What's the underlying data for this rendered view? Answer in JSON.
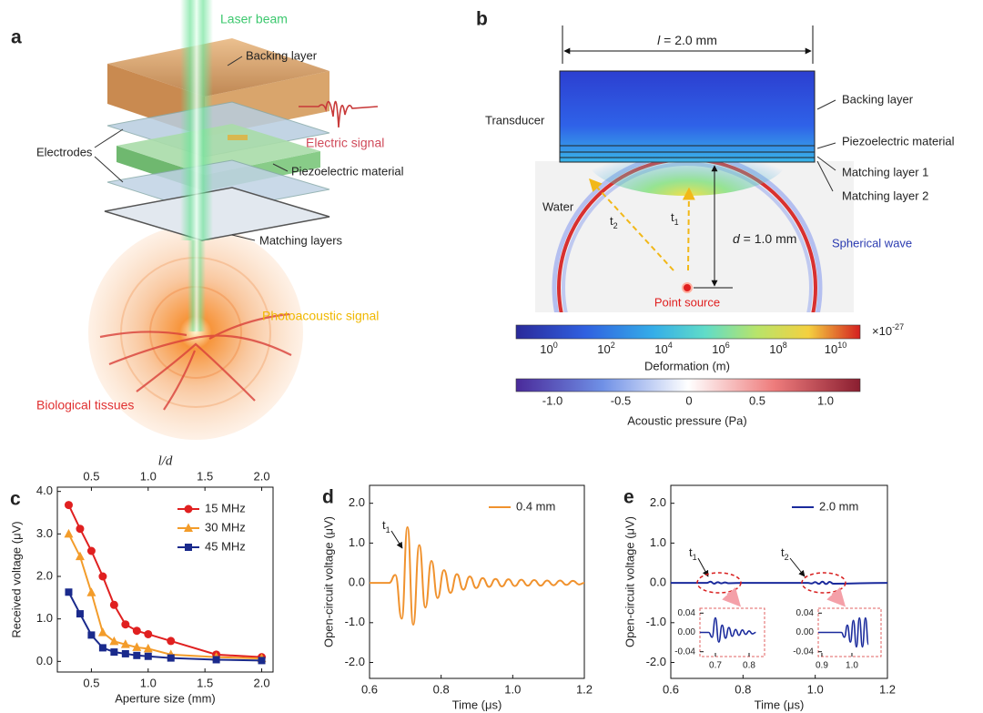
{
  "panel_a": {
    "label": "a",
    "laser": "Laser beam",
    "backing": "Backing layer",
    "electric": "Electric signal",
    "electrodes": "Electrodes",
    "piezo": "Piezoelectric material",
    "matching": "Matching layers",
    "photoacoustic": "Photoacoustic signal",
    "tissues": "Biological tissues"
  },
  "panel_b": {
    "label": "b",
    "length": {
      "symbol": "l",
      "rest": " = 2.0 mm"
    },
    "distance": {
      "symbol": "d",
      "rest": " = 1.0 mm"
    },
    "transducer": "Transducer",
    "backing": "Backing layer",
    "piezo": "Piezoelectric material",
    "matching1": "Matching layer 1",
    "matching2": "Matching layer 2",
    "water": "Water",
    "spherical": "Spherical wave",
    "point": "Point source",
    "t1": {
      "text": "t",
      "sub": "1"
    },
    "t2": {
      "text": "t",
      "sub": "2"
    },
    "deformation_bar": {
      "ticks": [
        {
          "base": "10",
          "exp": "0"
        },
        {
          "base": "10",
          "exp": "2"
        },
        {
          "base": "10",
          "exp": "4"
        },
        {
          "base": "10",
          "exp": "6"
        },
        {
          "base": "10",
          "exp": "8"
        },
        {
          "base": "10",
          "exp": "10"
        }
      ],
      "multiplier": {
        "base": "×10",
        "exp": "-27"
      },
      "label": "Deformation (m)"
    },
    "pressure_bar": {
      "ticks": [
        "-1.0",
        "-0.5",
        "0",
        "0.5",
        "1.0"
      ],
      "label": "Acoustic pressure (Pa)"
    }
  },
  "chart_data": [
    {
      "type": "line",
      "panel_label": "c",
      "x_label": "Aperture size (mm)",
      "y_label": "Received voltage (μV)",
      "x2_label": "l/d",
      "x": [
        0.3,
        0.4,
        0.5,
        0.6,
        0.7,
        0.8,
        0.9,
        1.0,
        1.2,
        1.6,
        2.0
      ],
      "series": [
        {
          "name": "15 MHz",
          "color": "#e02020",
          "marker": "circle",
          "values": [
            3.68,
            3.12,
            2.6,
            2.0,
            1.33,
            0.87,
            0.72,
            0.64,
            0.48,
            0.16,
            0.1
          ]
        },
        {
          "name": "30 MHz",
          "color": "#f39c2a",
          "marker": "triangle",
          "values": [
            3.0,
            2.47,
            1.62,
            0.68,
            0.47,
            0.4,
            0.33,
            0.3,
            0.16,
            0.1,
            0.07
          ]
        },
        {
          "name": "45 MHz",
          "color": "#1a2a8c",
          "marker": "square",
          "values": [
            1.63,
            1.12,
            0.62,
            0.32,
            0.22,
            0.18,
            0.14,
            0.12,
            0.08,
            0.04,
            0.02
          ]
        }
      ],
      "xlim": [
        0.2,
        2.1
      ],
      "xticks": [
        0.5,
        {
          "value": 1,
          "label": "1.0"
        },
        1.5,
        {
          "value": 2,
          "label": "2.0"
        }
      ],
      "x2lim": [
        0.2,
        2.1
      ],
      "x2ticks": [
        0.5,
        {
          "value": 1,
          "label": "1.0"
        },
        1.5,
        {
          "value": 2,
          "label": "2.0"
        }
      ],
      "ylim": [
        -0.25,
        4.1
      ],
      "yticks": [
        {
          "value": 0,
          "label": "0.0"
        },
        {
          "value": 1,
          "label": "1.0"
        },
        {
          "value": 2,
          "label": "2.0"
        },
        {
          "value": 3,
          "label": "3.0"
        },
        {
          "value": 4,
          "label": "4.0"
        }
      ],
      "legend": "upper right"
    },
    {
      "type": "line",
      "panel_label": "d",
      "x_label": "Time (μs)",
      "y_label": "Open-circuit voltage (μV)",
      "smooth": true,
      "x": [
        0.6,
        0.655,
        0.672,
        0.69,
        0.706,
        0.722,
        0.739,
        0.756,
        0.773,
        0.79,
        0.808,
        0.826,
        0.844,
        0.862,
        0.88,
        0.898,
        0.916,
        0.934,
        0.952,
        0.97,
        0.988,
        1.006,
        1.024,
        1.042,
        1.06,
        1.078,
        1.096,
        1.114,
        1.132,
        1.15,
        1.168,
        1.186,
        1.2
      ],
      "series": [
        {
          "name": "0.4 mm",
          "color": "#f0922e",
          "values": [
            0,
            0,
            0.2,
            -0.9,
            1.4,
            -1.05,
            0.95,
            -0.62,
            0.55,
            -0.38,
            0.32,
            -0.25,
            0.22,
            -0.17,
            0.16,
            -0.13,
            0.12,
            -0.1,
            0.1,
            -0.09,
            0.09,
            -0.08,
            0.08,
            -0.07,
            0.07,
            -0.07,
            0.06,
            -0.06,
            0.06,
            -0.05,
            0.05,
            -0.04,
            0
          ]
        }
      ],
      "xlim": [
        0.6,
        1.2
      ],
      "xticks": [
        0.6,
        0.8,
        {
          "value": 1,
          "label": "1.0"
        },
        1.2
      ],
      "ylim": [
        -2.4,
        2.45
      ],
      "yticks": [
        {
          "value": -2,
          "label": "-2.0"
        },
        {
          "value": -1,
          "label": "-1.0"
        },
        {
          "value": 0,
          "label": "0.0"
        },
        {
          "value": 1,
          "label": "1.0"
        },
        {
          "value": 2,
          "label": "2.0"
        }
      ],
      "legend": "upper right",
      "annotations": [
        {
          "text": "t",
          "sub": "1"
        }
      ]
    },
    {
      "type": "line",
      "panel_label": "e",
      "x_label": "Time (μs)",
      "y_label": "Open-circuit voltage (μV)",
      "smooth": true,
      "x": [
        0.6,
        0.7,
        0.71,
        0.72,
        0.73,
        0.74,
        0.75,
        0.76,
        0.8,
        0.98,
        0.99,
        1.0,
        1.01,
        1.02,
        1.03,
        1.04,
        1.05,
        1.2
      ],
      "series": [
        {
          "name": "2.0 mm",
          "color": "#1a2a9c",
          "values": [
            0,
            0,
            0.03,
            -0.02,
            0.015,
            -0.012,
            0.01,
            -0.008,
            0,
            0,
            -0.015,
            0.02,
            -0.025,
            0.03,
            -0.03,
            0.025,
            -0.02,
            0
          ]
        }
      ],
      "xlim": [
        0.6,
        1.2
      ],
      "xticks": [
        0.6,
        0.8,
        {
          "value": 1,
          "label": "1.0"
        },
        1.2
      ],
      "ylim": [
        -2.4,
        2.45
      ],
      "yticks": [
        {
          "value": -2,
          "label": "-2.0"
        },
        {
          "value": -1,
          "label": "-1.0"
        },
        {
          "value": 0,
          "label": "0.0"
        },
        {
          "value": 1,
          "label": "1.0"
        },
        {
          "value": 2,
          "label": "2.0"
        }
      ],
      "legend": "upper right",
      "annotations": [
        {
          "text": "t",
          "sub": "1"
        },
        {
          "text": "t",
          "sub": "2"
        }
      ]
    },
    {
      "type": "line",
      "smooth": true,
      "frame_color": "#e06060",
      "x": [
        0.654,
        0.68,
        0.69,
        0.7,
        0.71,
        0.72,
        0.73,
        0.74,
        0.75,
        0.76,
        0.77,
        0.78,
        0.79,
        0.8,
        0.81,
        0.82
      ],
      "series": [
        {
          "color": "#1a2a9c",
          "values": [
            0,
            0,
            -0.01,
            0.03,
            -0.02,
            0.015,
            -0.012,
            0.01,
            -0.008,
            0.006,
            -0.006,
            0.005,
            -0.004,
            0.003,
            -0.003,
            0
          ]
        }
      ],
      "xlim": [
        0.654,
        0.846
      ],
      "xticks": [
        0.7,
        0.8
      ],
      "ylim": [
        -0.05,
        0.05
      ],
      "yticks": [
        {
          "value": 0.04,
          "label": "0.04"
        },
        {
          "value": 0,
          "label": "0.00"
        },
        {
          "value": -0.04,
          "label": "-0.04"
        }
      ]
    },
    {
      "type": "line",
      "smooth": true,
      "frame_color": "#e06060",
      "x": [
        0.888,
        0.965,
        0.975,
        0.985,
        0.995,
        1.005,
        1.015,
        1.025,
        1.035,
        1.045,
        1.055
      ],
      "series": [
        {
          "color": "#1a2a9c",
          "values": [
            0,
            0,
            -0.01,
            0.015,
            -0.02,
            0.025,
            -0.03,
            0.03,
            -0.03,
            0.03,
            -0.025
          ]
        }
      ],
      "xlim": [
        0.888,
        1.097
      ],
      "xticks": [
        0.9,
        {
          "value": 1,
          "label": "1.0"
        }
      ],
      "ylim": [
        -0.05,
        0.05
      ],
      "yticks": [
        {
          "value": 0.04,
          "label": "0.04"
        },
        {
          "value": 0,
          "label": "0.00"
        },
        {
          "value": -0.04,
          "label": "-0.04"
        }
      ]
    }
  ]
}
